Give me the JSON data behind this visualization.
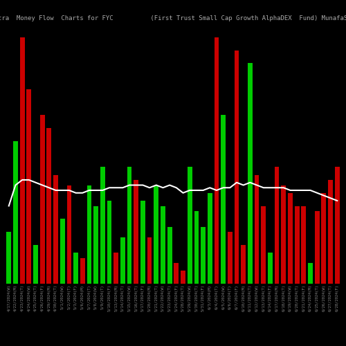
{
  "title_left": "MunafaSutra  Money Flow  Charts for FYC",
  "title_right": "(First Trust Small Cap Growth AlphaDEX  Fund) MunafaSutra.com",
  "background_color": "#000000",
  "bar_width": 0.7,
  "categories": [
    "4/17/2024(W)",
    "4/22/2024(M)",
    "4/23/2024(T)",
    "4/24/2024(W)",
    "4/25/2024(T)",
    "4/26/2024(F)",
    "4/29/2024(M)",
    "4/30/2024(T)",
    "5/1/2024(W)",
    "5/2/2024(T)",
    "5/3/2024(F)",
    "5/6/2024(M)",
    "5/7/2024(T)",
    "5/8/2024(W)",
    "5/9/2024(T)",
    "5/10/2024(F)",
    "5/13/2024(M)",
    "5/14/2024(T)",
    "5/15/2024(W)",
    "5/16/2024(T)",
    "5/17/2024(F)",
    "5/20/2024(M)",
    "5/21/2024(T)",
    "5/22/2024(W)",
    "5/23/2024(T)",
    "5/24/2024(F)",
    "5/28/2024(T)",
    "5/29/2024(W)",
    "5/30/2024(T)",
    "5/31/2024(F)",
    "6/3/2024(M)",
    "6/4/2024(T)",
    "6/5/2024(W)",
    "6/6/2024(T)",
    "6/7/2024(F)",
    "6/10/2024(M)",
    "6/11/2024(T)",
    "6/12/2024(W)",
    "6/13/2024(T)",
    "6/14/2024(F)",
    "6/17/2024(M)",
    "6/18/2024(T)",
    "6/19/2024(W)",
    "6/20/2024(T)",
    "6/21/2024(F)",
    "6/24/2024(M)",
    "6/25/2024(T)",
    "6/26/2024(W)",
    "6/27/2024(T)",
    "6/28/2024(F)"
  ],
  "values": [
    20,
    55,
    95,
    75,
    15,
    65,
    60,
    42,
    25,
    38,
    12,
    10,
    38,
    30,
    45,
    32,
    12,
    18,
    45,
    40,
    32,
    18,
    38,
    30,
    22,
    8,
    5,
    45,
    28,
    22,
    35,
    95,
    65,
    20,
    90,
    15,
    85,
    42,
    30,
    12,
    45,
    38,
    35,
    30,
    30,
    8,
    28,
    35,
    40,
    45
  ],
  "colors": [
    "green",
    "green",
    "red",
    "red",
    "green",
    "red",
    "red",
    "red",
    "green",
    "red",
    "green",
    "red",
    "green",
    "green",
    "green",
    "green",
    "red",
    "green",
    "green",
    "red",
    "green",
    "red",
    "green",
    "green",
    "green",
    "red",
    "red",
    "green",
    "green",
    "green",
    "green",
    "red",
    "green",
    "red",
    "red",
    "red",
    "green",
    "red",
    "red",
    "green",
    "red",
    "red",
    "red",
    "red",
    "red",
    "green",
    "red",
    "red",
    "red",
    "red"
  ],
  "line_values": [
    30,
    38,
    40,
    40,
    39,
    38,
    37,
    36,
    36,
    36,
    35,
    35,
    36,
    36,
    36,
    37,
    37,
    37,
    38,
    38,
    38,
    37,
    38,
    37,
    38,
    37,
    35,
    36,
    36,
    36,
    37,
    36,
    37,
    37,
    39,
    38,
    39,
    38,
    37,
    37,
    37,
    37,
    36,
    36,
    36,
    36,
    35,
    34,
    33,
    32
  ],
  "positive_color": "#00cc00",
  "negative_color": "#cc0000",
  "line_color": "#ffffff",
  "text_color": "#888888",
  "title_color": "#aaaaaa",
  "font_size_title": 6.5,
  "font_size_tick": 4.0,
  "ylim_max": 100,
  "line_scale": 100
}
